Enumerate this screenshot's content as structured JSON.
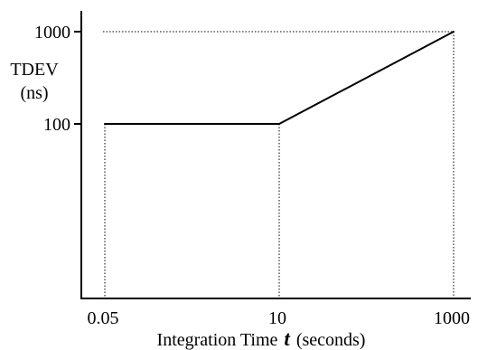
{
  "chart_data": {
    "type": "line",
    "title": "",
    "xlabel": {
      "before": "Integration Time",
      "symbol": "t",
      "after": "(seconds)"
    },
    "ylabel": {
      "line1": "TDEV",
      "line2": "(ns)"
    },
    "x_scale": "log",
    "y_scale": "log",
    "x_ticks": [
      {
        "value": 0.05,
        "label": "0.05"
      },
      {
        "value": 10,
        "label": "10"
      },
      {
        "value": 1000,
        "label": "1000"
      }
    ],
    "y_ticks": [
      {
        "value": 100,
        "label": "100"
      },
      {
        "value": 1000,
        "label": "1000"
      }
    ],
    "series": [
      {
        "x": [
          0.05,
          10,
          1000
        ],
        "y": [
          100,
          100,
          1000
        ]
      }
    ],
    "reference_lines": {
      "vertical_dotted_at_x": [
        0.05,
        10,
        1000
      ],
      "horizontal_dotted_at_y": [
        1000
      ]
    },
    "grid": false,
    "legend": "none",
    "colors": {
      "line": "#000000",
      "axis": "#000000",
      "dotted": "#000000"
    }
  }
}
